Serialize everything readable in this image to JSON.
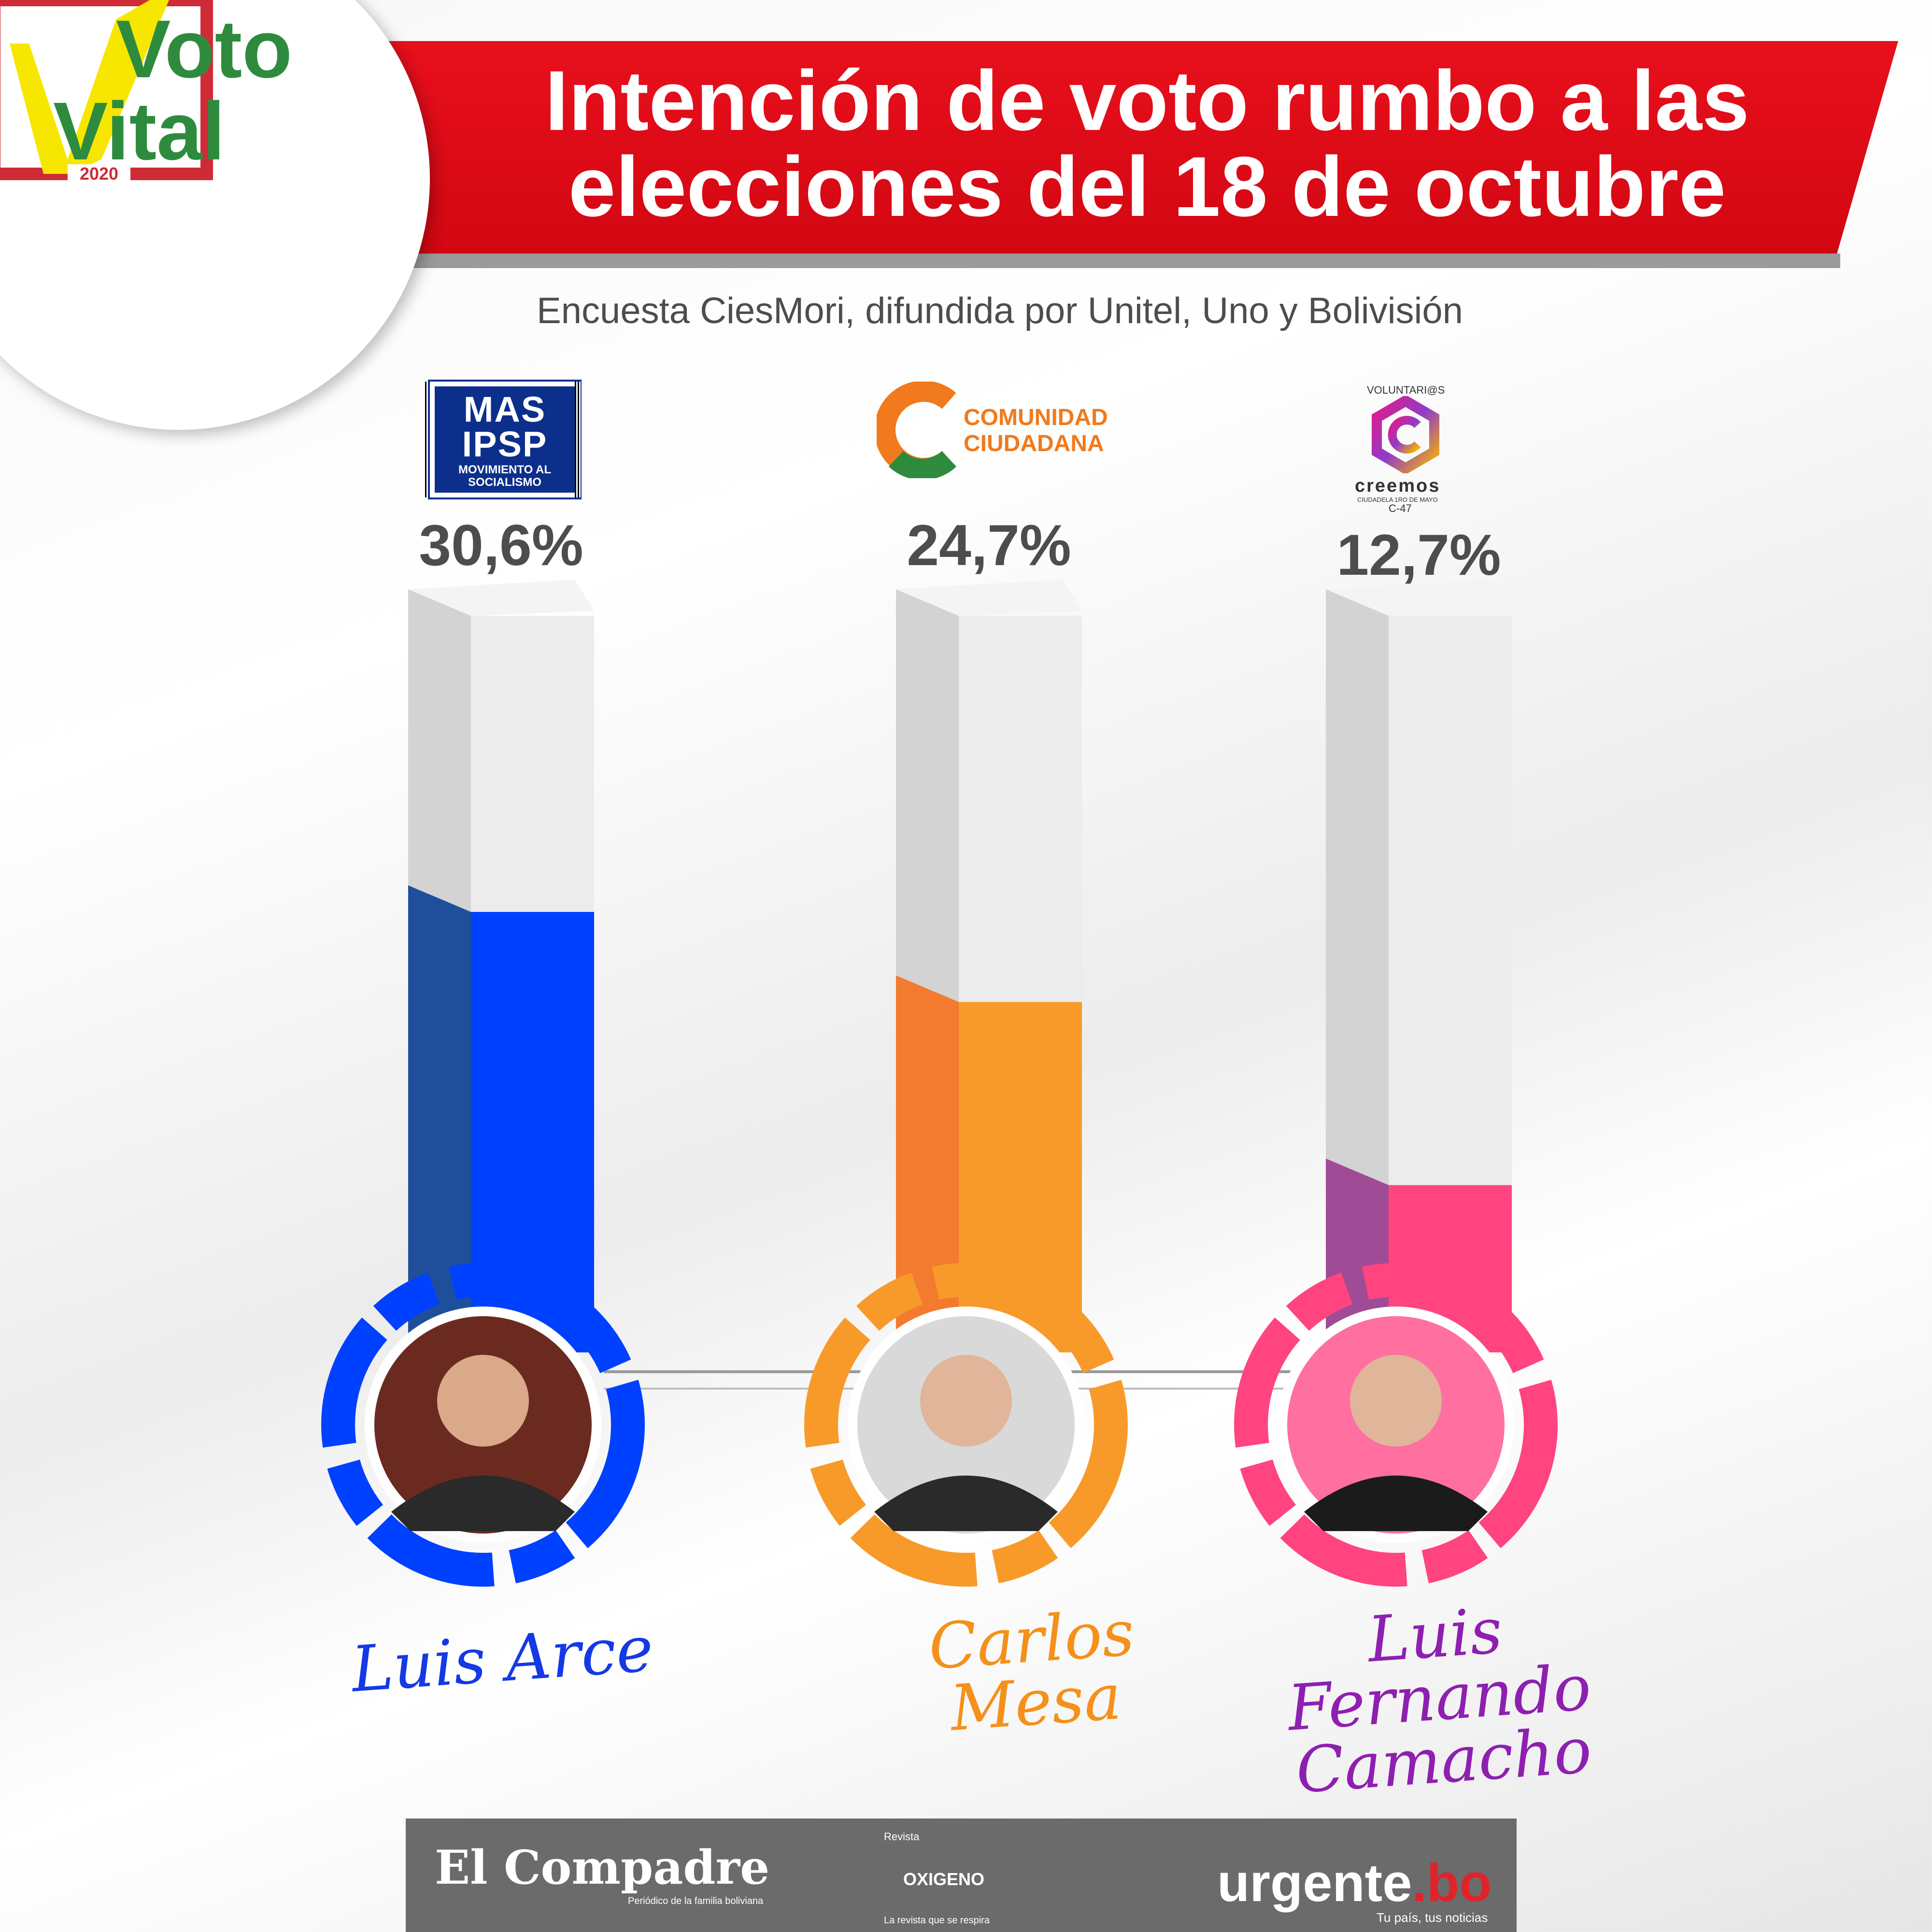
{
  "header": {
    "title": "Intención de voto  rumbo a las elecciones del 18 de octubre",
    "subtitle": "Encuesta CiesMori, difundida por Unitel, Uno y Bolivisión"
  },
  "brand": {
    "logo_word_1": "Voto",
    "logo_word_2": "Vital",
    "logo_year": "2020"
  },
  "parties": {
    "mas": {
      "line1": "MAS",
      "line2": "IPSP",
      "line3": "MOVIMIENTO AL SOCIALISMO"
    },
    "cc": {
      "line1": "COMUNIDAD",
      "line2": "CIUDADANA"
    },
    "creemos": {
      "top": "VOLUNTARI@S",
      "name": "creemos",
      "sub": "CIUDADELA 1RO DE MAYO",
      "code": "C-47"
    }
  },
  "candidates": {
    "arce": "Luis Arce",
    "mesa": "Carlos Mesa",
    "camacho": "Luis Fernando Camacho"
  },
  "footer": {
    "compadre": "El Compadre",
    "compadre_sub": "Periódico de la familia boliviana",
    "revista": "Revista",
    "oxigeno": "OXIGENO",
    "oxigeno_sub": "La revista que se respira",
    "urgente": "urgente",
    "urgente_tld": ".bo",
    "urgente_sub": "Tu país, tus noticias"
  },
  "colors": {
    "header_red": "#e8101c",
    "mas_blue": "#0040ff",
    "mas_blue_dark": "#1f4f9a",
    "cc_orange": "#f89a2a",
    "cc_orange_dark": "#f27b2f",
    "creemos_pink": "#ff4480",
    "creemos_purple": "#a04b96",
    "tube_light": "#ececec",
    "tube_dark": "#d3d3d3"
  },
  "chart_data": {
    "type": "bar",
    "categories": [
      "Luis Arce",
      "Carlos Mesa",
      "Luis Fernando Camacho"
    ],
    "values": [
      30.6,
      24.7,
      12.7
    ],
    "value_labels": [
      "30,6%",
      "24,7%",
      "12,7%"
    ],
    "ylim": [
      0,
      50
    ],
    "grid": false,
    "legend": "none"
  }
}
